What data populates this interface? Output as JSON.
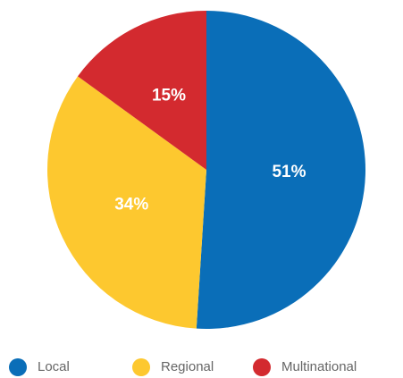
{
  "chart_data": {
    "type": "pie",
    "categories": [
      "Local",
      "Regional",
      "Multinational"
    ],
    "values": [
      51,
      34,
      15
    ],
    "value_labels": [
      "51%",
      "34%",
      "15%"
    ],
    "colors": [
      "#0a6eb8",
      "#fdc82f",
      "#d32a2f"
    ],
    "legend": "bottom"
  }
}
